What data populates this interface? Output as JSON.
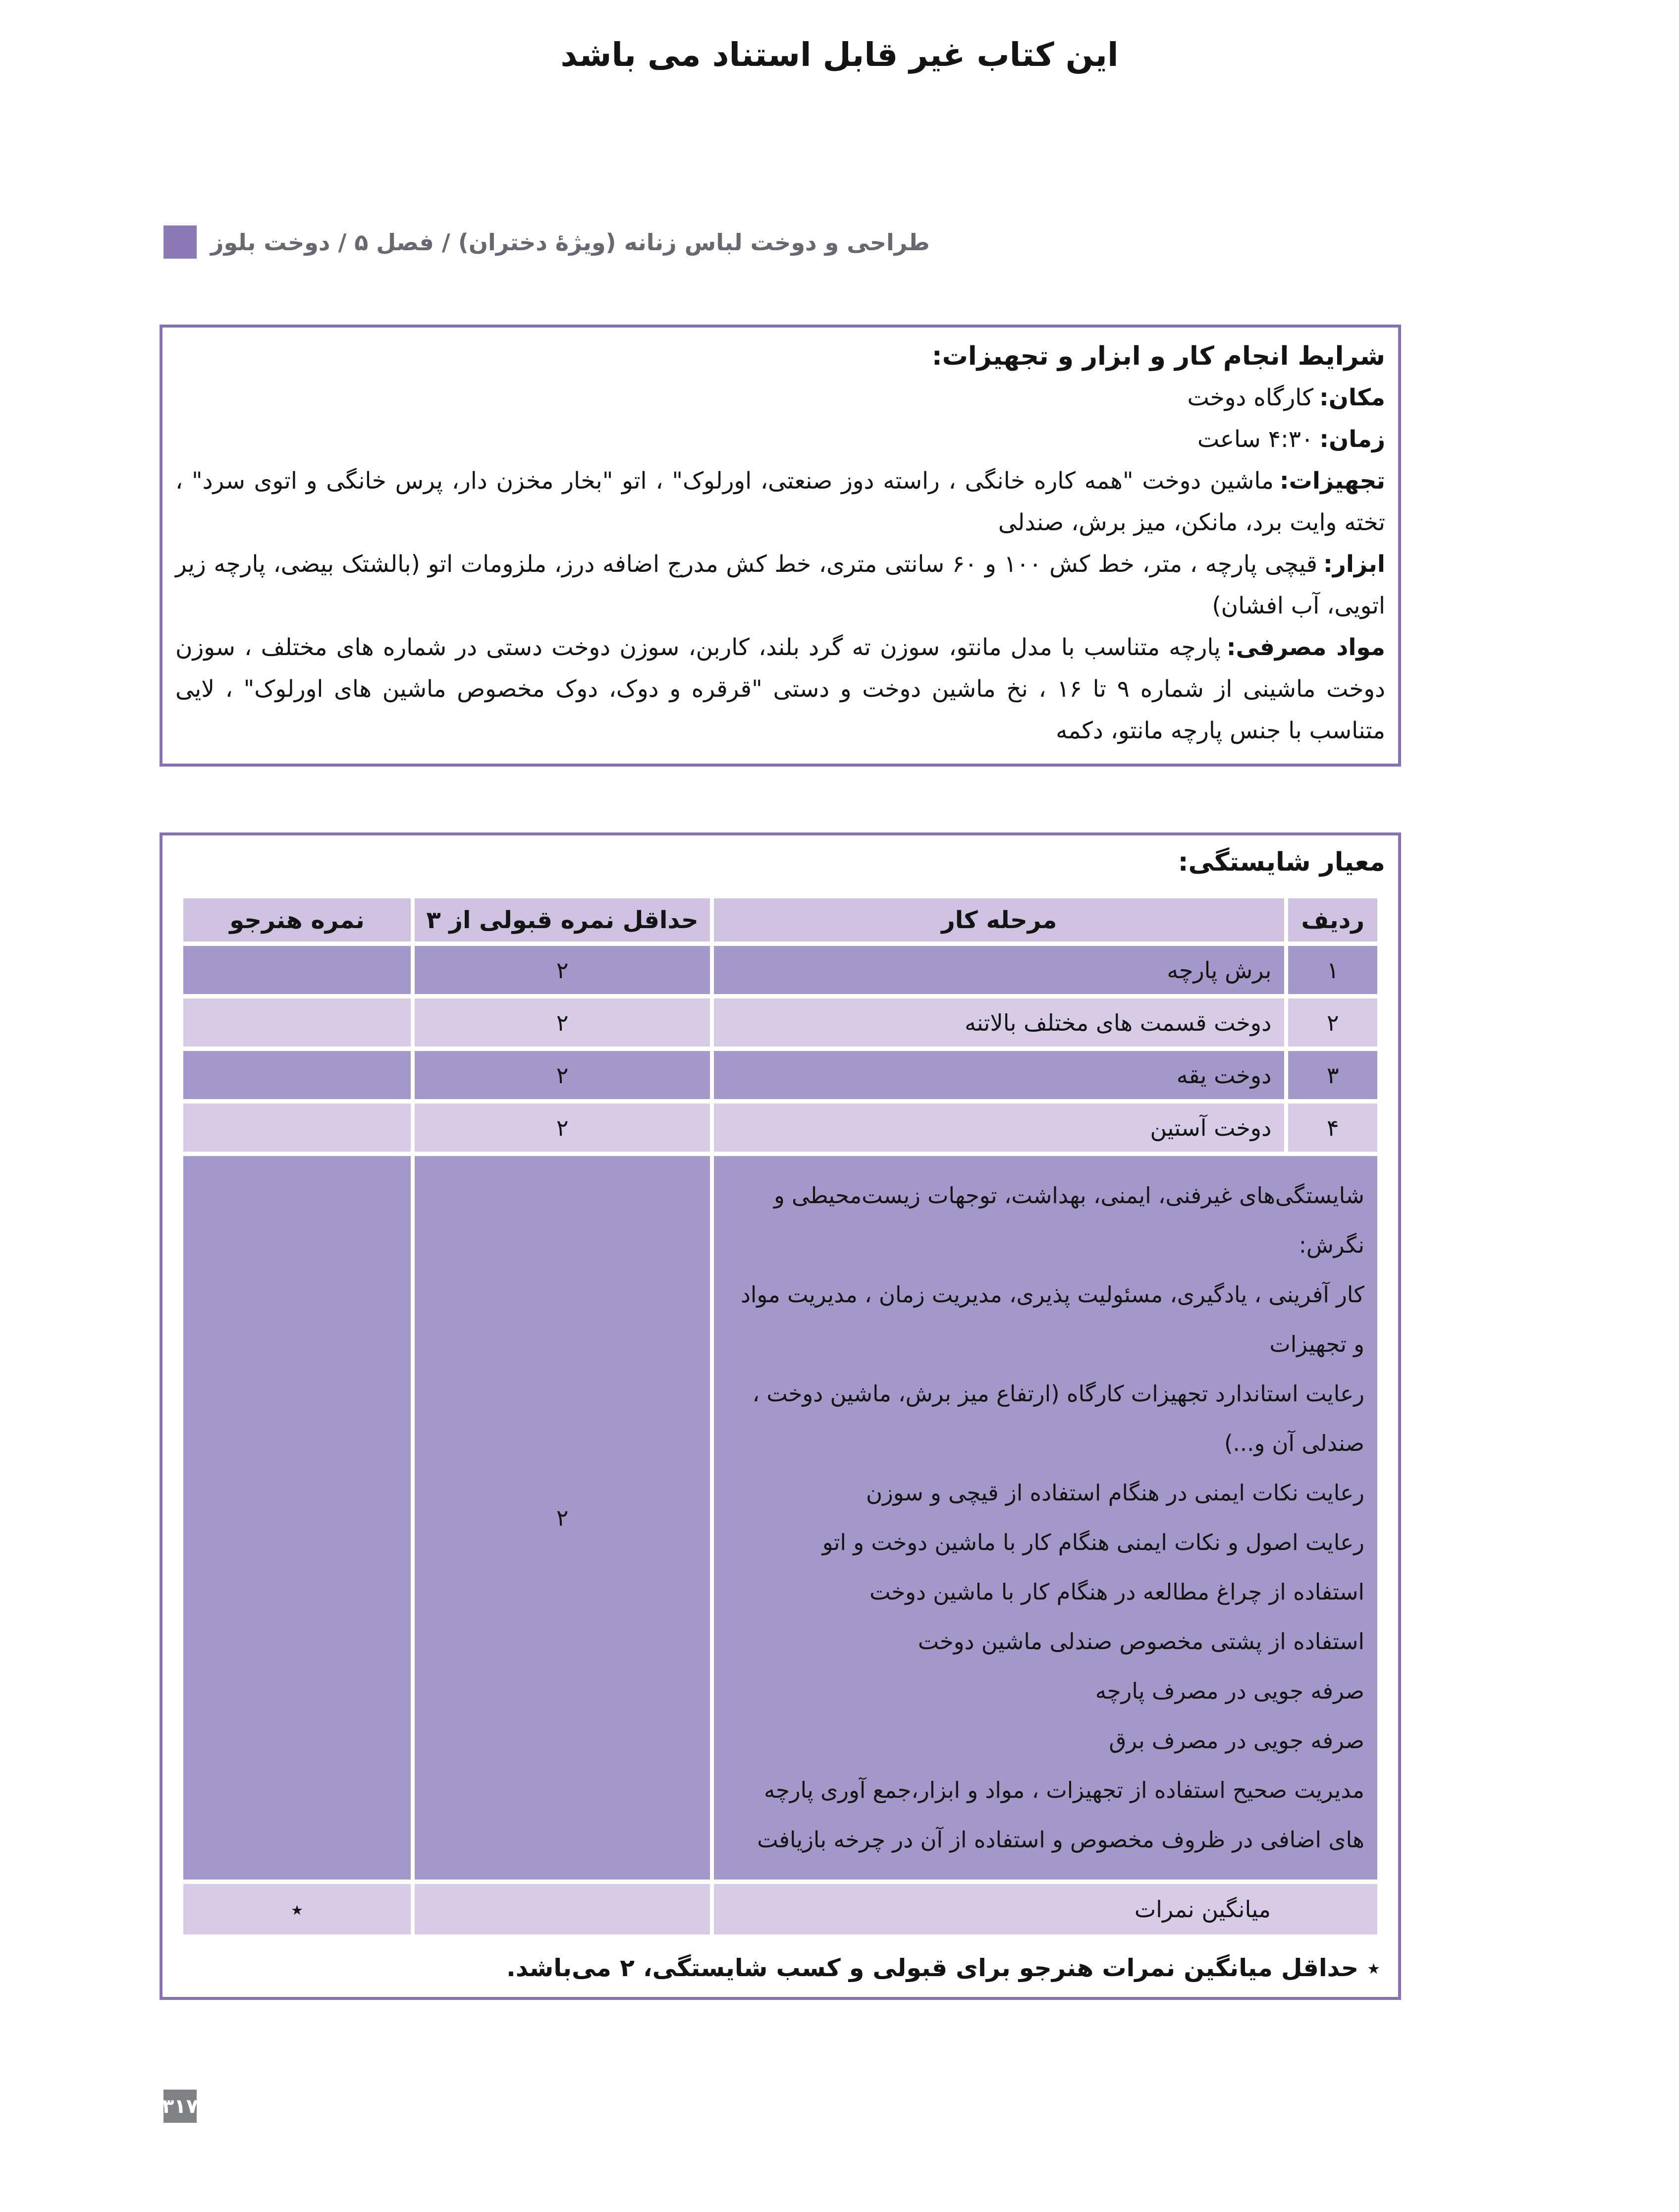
{
  "colors": {
    "accent-border": "#8673b2",
    "accent-square": "#8b7ab8",
    "table-header-bg": "#cdc2df",
    "row-light-bg": "#d6cce8",
    "row-dark-bg": "#a498c8",
    "header-text": "#6a6771",
    "page-number-bg": "#7f8184"
  },
  "page": {
    "watermark": "این کتاب غیر قابل استناد می باشد",
    "page_number": "۳۱۷"
  },
  "header": {
    "chapter_label": "طراحی و دوخت لباس زنانه (ویژۀ دختران) / فصل ۵ / دوخت بلوز"
  },
  "conditions_box": {
    "title": "شرایط انجام کار و ابزار و تجهیزات:",
    "items": [
      {
        "label": "مکان:",
        "text": "کارگاه دوخت"
      },
      {
        "label": "زمان:",
        "text": "۴:۳۰ ساعت"
      },
      {
        "label": "تجهیزات:",
        "text": "ماشین دوخت \"همه کاره خانگی ، راسته دوز صنعتی، اورلوک\" ، اتو \"بخار مخزن دار، پرس خانگی و اتوی سرد\" ، تخته وایت برد، مانکن، میز برش، صندلی"
      },
      {
        "label": "ابزار:",
        "text": "قیچی پارچه ، متر، خط کش ۱۰۰ و ۶۰ سانتی متری، خط کش مدرج اضافه درز، ملزومات اتو (بالشتک بیضی، پارچه زیر اتویی، آب افشان)"
      },
      {
        "label": "مواد مصرفی:",
        "text": "پارچه متناسب با مدل مانتو، سوزن ته گرد بلند، کاربن، سوزن دوخت دستی در شماره های مختلف ، سوزن دوخت ماشینی از شماره ۹ تا ۱۶ ، نخ ماشین دوخت و دستی \"قرقره و دوک، دوک مخصوص ماشین های اورلوک\" ، لایی متناسب با جنس پارچه مانتو، دکمه"
      }
    ]
  },
  "competency_box": {
    "title": "معیار شایستگی:",
    "table": {
      "headers": [
        "ردیف",
        "مرحله کار",
        "حداقل نمره قبولی از ۳",
        "نمره هنرجو"
      ],
      "rows": [
        {
          "no": "۱",
          "stage": "برش پارچه",
          "min_score": "۲",
          "student_score": ""
        },
        {
          "no": "۲",
          "stage": "دوخت قسمت های مختلف بالاتنه",
          "min_score": "۲",
          "student_score": ""
        },
        {
          "no": "۳",
          "stage": "دوخت یقه",
          "min_score": "۲",
          "student_score": ""
        },
        {
          "no": "۴",
          "stage": "دوخت آستین",
          "min_score": "۲",
          "student_score": ""
        }
      ],
      "soft_skills_row": {
        "lines": [
          "شایستگی‌های غیرفنی، ایمنی، بهداشت، توجهات زیست‌محیطی و نگرش:",
          "کار آفرینی ، یادگیری، مسئولیت پذیری، مدیریت زمان ، مدیریت مواد و تجهیزات",
          "رعایت استاندارد تجهیزات کارگاه (ارتفاع میز برش، ماشین دوخت ، صندلی آن و...)",
          "رعایت نکات ایمنی در هنگام استفاده از قیچی و سوزن",
          "رعایت اصول و نکات ایمنی هنگام کار با ماشین دوخت و اتو",
          "استفاده از چراغ مطالعه در هنگام کار با ماشین دوخت",
          "استفاده از پشتی مخصوص صندلی ماشین دوخت",
          "صرفه جویی در مصرف پارچه",
          "صرفه جویی در مصرف برق",
          "مدیریت صحیح استفاده از تجهیزات ، مواد و ابزار،جمع آوری پارچه های اضافی در ظروف مخصوص و استفاده از آن در چرخه بازیافت"
        ],
        "min_score": "۲",
        "student_score": ""
      },
      "average_row": {
        "stage": "میانگین نمرات",
        "min_score": "",
        "student_score": "٭"
      }
    },
    "footnote": "٭ حداقل میانگین نمرات هنرجو برای قبولی و کسب شایستگی، ۲ می‌باشد."
  }
}
